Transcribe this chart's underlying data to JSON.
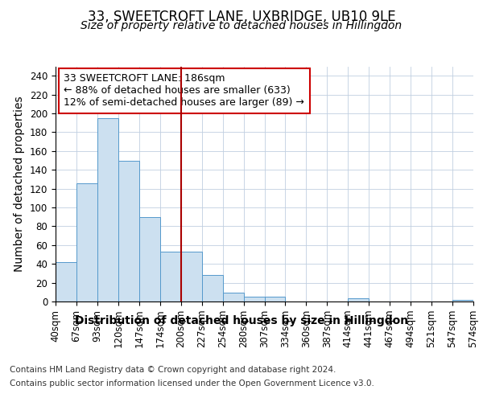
{
  "title": "33, SWEETCROFT LANE, UXBRIDGE, UB10 9LE",
  "subtitle": "Size of property relative to detached houses in Hillingdon",
  "xlabel": "Distribution of detached houses by size in Hillingdon",
  "ylabel": "Number of detached properties",
  "footer_line1": "Contains HM Land Registry data © Crown copyright and database right 2024.",
  "footer_line2": "Contains public sector information licensed under the Open Government Licence v3.0.",
  "categories": [
    "40sqm",
    "67sqm",
    "93sqm",
    "120sqm",
    "147sqm",
    "174sqm",
    "200sqm",
    "227sqm",
    "254sqm",
    "280sqm",
    "307sqm",
    "334sqm",
    "360sqm",
    "387sqm",
    "414sqm",
    "441sqm",
    "467sqm",
    "494sqm",
    "521sqm",
    "547sqm",
    "574sqm"
  ],
  "values": [
    42,
    126,
    195,
    150,
    90,
    53,
    53,
    28,
    9,
    5,
    5,
    0,
    0,
    0,
    3,
    0,
    0,
    0,
    0,
    2,
    0
  ],
  "bar_color": "#cce0f0",
  "bar_edge_color": "#5599cc",
  "vline_x_index": 5.5,
  "vline_color": "#aa0000",
  "annotation_line1": "33 SWEETCROFT LANE: 186sqm",
  "annotation_line2": "← 88% of detached houses are smaller (633)",
  "annotation_line3": "12% of semi-detached houses are larger (89) →",
  "annotation_box_color": "#ffffff",
  "annotation_box_edge": "#cc0000",
  "ylim": [
    0,
    250
  ],
  "yticks": [
    0,
    20,
    40,
    60,
    80,
    100,
    120,
    140,
    160,
    180,
    200,
    220,
    240
  ],
  "background_color": "#ffffff",
  "plot_bg_color": "#ffffff",
  "grid_color": "#c0cfe0",
  "title_fontsize": 12,
  "subtitle_fontsize": 10,
  "axis_label_fontsize": 10,
  "tick_fontsize": 8.5,
  "footer_fontsize": 7.5,
  "annotation_fontsize": 9
}
